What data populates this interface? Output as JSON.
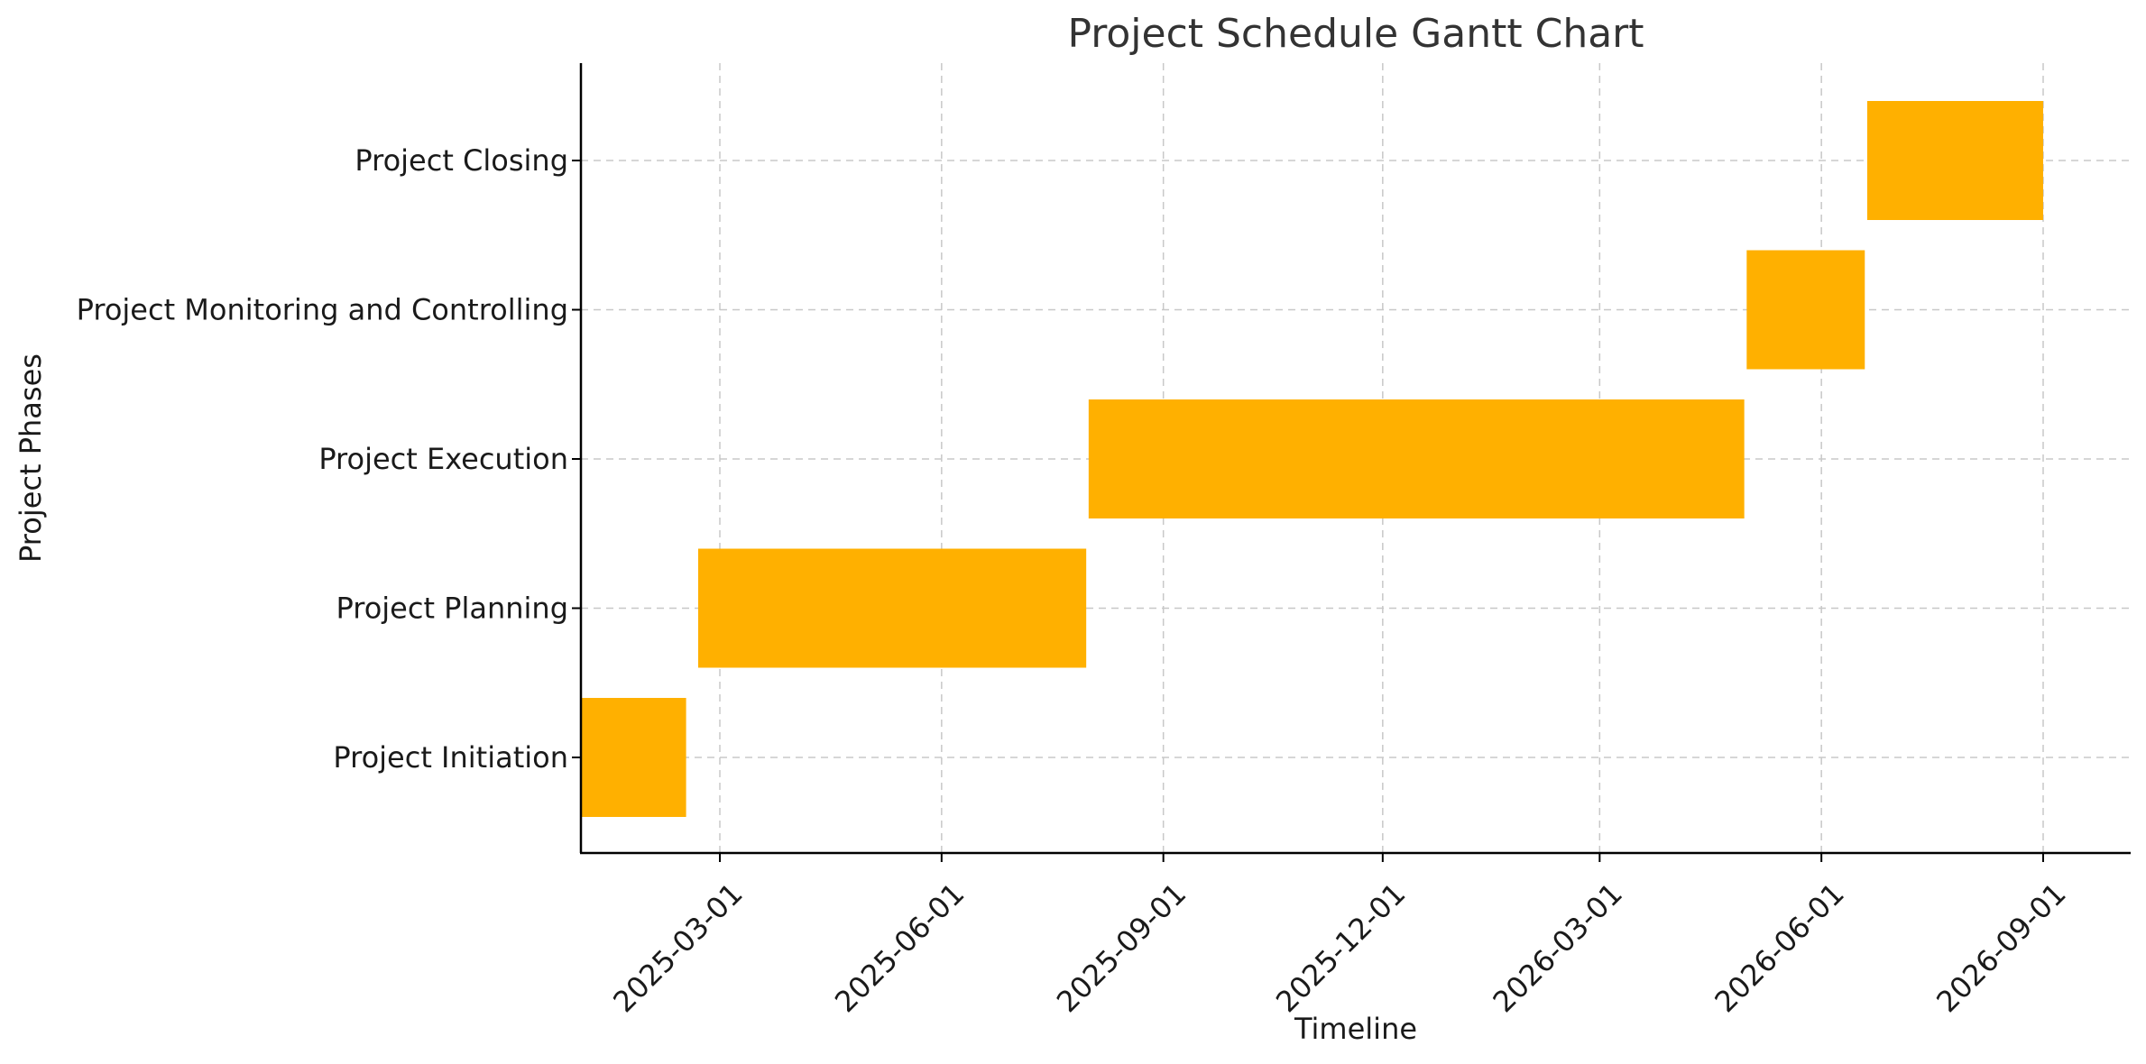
{
  "chart_data": {
    "type": "gantt",
    "title": "Project Schedule Gantt Chart",
    "xlabel": "Timeline",
    "ylabel": "Project Phases",
    "x_ticks": [
      "2025-03-01",
      "2025-06-01",
      "2025-09-01",
      "2025-12-01",
      "2026-03-01",
      "2026-06-01",
      "2026-09-01"
    ],
    "xlim": [
      "2025-01-01",
      "2026-09-15"
    ],
    "grid": true,
    "bar_color": "#FFB000",
    "tasks": [
      {
        "name": "Project Initiation",
        "start": "2025-01-01",
        "end": "2025-02-15"
      },
      {
        "name": "Project Planning",
        "start": "2025-02-20",
        "end": "2025-07-31"
      },
      {
        "name": "Project Execution",
        "start": "2025-08-01",
        "end": "2026-04-30"
      },
      {
        "name": "Project Monitoring and Controlling",
        "start": "2026-05-01",
        "end": "2026-06-19"
      },
      {
        "name": "Project Closing",
        "start": "2026-06-20",
        "end": "2026-09-01"
      }
    ]
  }
}
